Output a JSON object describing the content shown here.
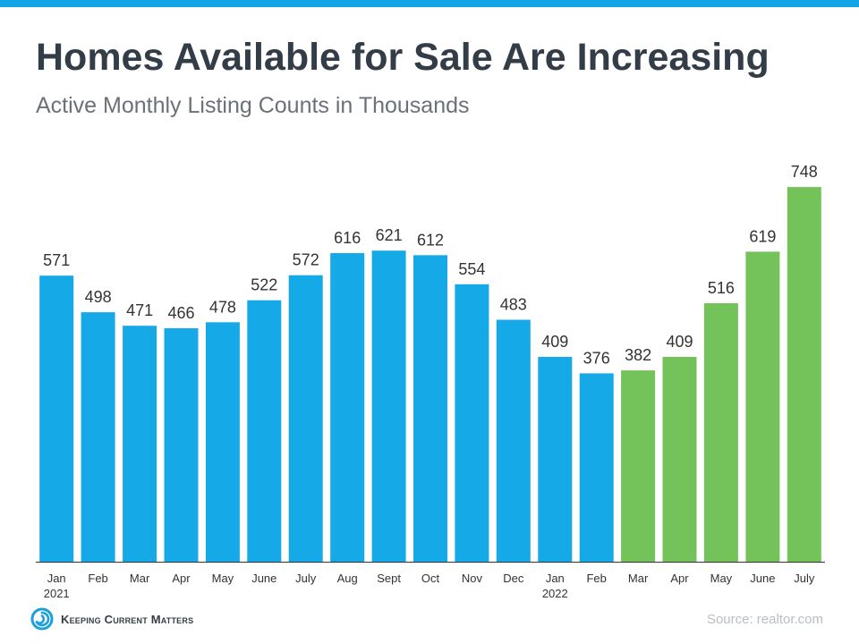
{
  "header": {
    "title": "Homes Available for Sale Are Increasing",
    "subtitle": "Active Monthly Listing Counts in Thousands"
  },
  "chart_data": {
    "type": "bar",
    "title": "Homes Available for Sale Are Increasing",
    "subtitle": "Active Monthly Listing Counts in Thousands",
    "categories": [
      [
        "Jan",
        "2021"
      ],
      [
        "Feb"
      ],
      [
        "Mar"
      ],
      [
        "Apr"
      ],
      [
        "May"
      ],
      [
        "June"
      ],
      [
        "July"
      ],
      [
        "Aug"
      ],
      [
        "Sept"
      ],
      [
        "Oct"
      ],
      [
        "Nov"
      ],
      [
        "Dec"
      ],
      [
        "Jan",
        "2022"
      ],
      [
        "Feb"
      ],
      [
        "Mar"
      ],
      [
        "Apr"
      ],
      [
        "May"
      ],
      [
        "June"
      ],
      [
        "July"
      ]
    ],
    "values": [
      571,
      498,
      471,
      466,
      478,
      522,
      572,
      616,
      621,
      612,
      554,
      483,
      409,
      376,
      382,
      409,
      516,
      619,
      748
    ],
    "bar_colors": [
      "#16a9e8",
      "#16a9e8",
      "#16a9e8",
      "#16a9e8",
      "#16a9e8",
      "#16a9e8",
      "#16a9e8",
      "#16a9e8",
      "#16a9e8",
      "#16a9e8",
      "#16a9e8",
      "#16a9e8",
      "#16a9e8",
      "#16a9e8",
      "#74c25a",
      "#74c25a",
      "#74c25a",
      "#74c25a",
      "#74c25a"
    ],
    "ylim": [
      0,
      800
    ],
    "xlabel": "",
    "ylabel": "",
    "grid": false,
    "legend": "none"
  },
  "footer": {
    "logo_text": "Keeping Current Matters",
    "source": "Source: realtor.com"
  },
  "colors": {
    "top_bar": "#12a4e6",
    "title": "#333d47",
    "subtitle": "#6b7178",
    "axis": "#333333",
    "value_label": "#333333",
    "tick_label": "#333333",
    "source": "#b9bec4",
    "logo_blue": "#1aa0dc"
  }
}
